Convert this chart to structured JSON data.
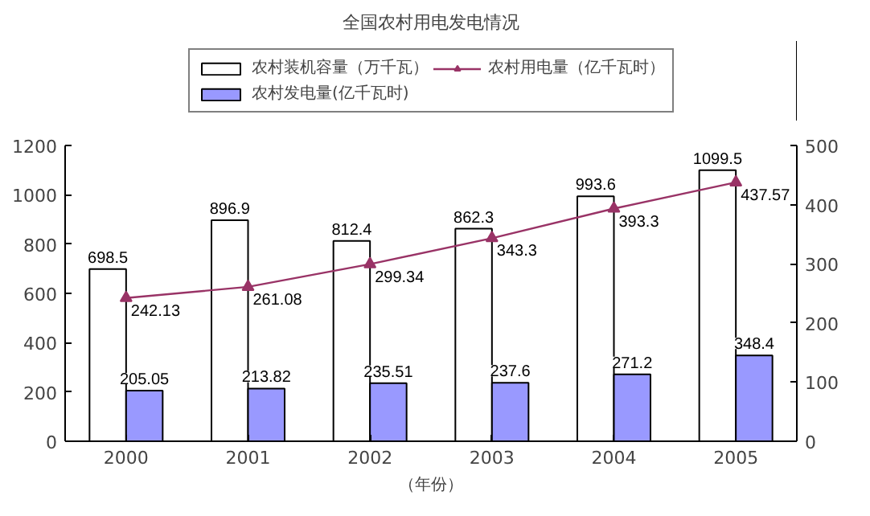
{
  "chart_data": {
    "type": "bar",
    "title": "全国农村用电发电情况",
    "xlabel": "（年份）",
    "categories": [
      "2000",
      "2001",
      "2002",
      "2003",
      "2004",
      "2005"
    ],
    "series": [
      {
        "name": "农村装机容量（万千瓦）",
        "color": "#ffffff",
        "values": [
          698.5,
          896.9,
          812.4,
          862.3,
          993.6,
          1099.5
        ]
      },
      {
        "name": "农村发电量(亿千瓦时)",
        "color": "#9999ff",
        "values": [
          205.05,
          213.82,
          235.51,
          237.6,
          271.2,
          348.4
        ]
      },
      {
        "name": "农村用电量（亿千瓦时）",
        "type": "line",
        "axis": "y2",
        "color": "#993366",
        "values": [
          242.13,
          261.08,
          299.34,
          343.3,
          393.3,
          437.57
        ]
      }
    ],
    "ylim": [
      0,
      1200
    ],
    "yticks": [
      0,
      200,
      400,
      600,
      800,
      1000,
      1200
    ],
    "y2lim": [
      0,
      500
    ],
    "y2ticks": [
      0,
      100,
      200,
      300,
      400,
      500
    ],
    "data_labels": true,
    "legend": "top",
    "grid": false,
    "marker": "triangle"
  }
}
